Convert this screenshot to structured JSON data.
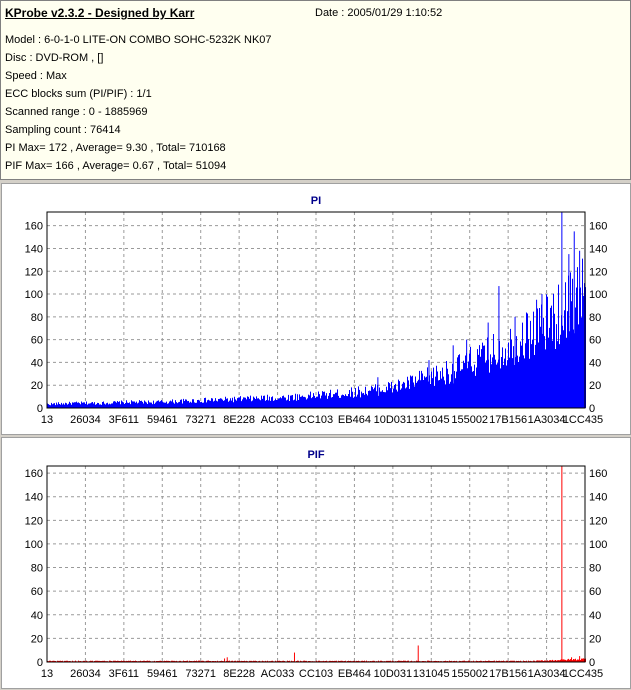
{
  "header": {
    "title": "KProbe v2.3.2 - Designed by Karr",
    "date": "Date : 2005/01/29 1:10:52",
    "lines": [
      "Model : 6-0-1-0 LITE-ON COMBO SOHC-5232K NK07",
      "Disc : DVD-ROM ,  []",
      "Speed : Max",
      "ECC blocks sum (PI/PIF) : 1/1",
      "Scanned range : 0 - 1885969",
      "Sampling count : 76414",
      "PI Max= 172 , Average= 9.30 , Total= 710168",
      "PIF Max= 166 , Average= 0.67 , Total= 51094"
    ]
  },
  "chart_data": [
    {
      "type": "bar",
      "title": "PI",
      "color": "#0000ff",
      "ylim": [
        0,
        172
      ],
      "yticks": [
        0,
        20,
        40,
        60,
        80,
        100,
        120,
        140,
        160
      ],
      "xticks": [
        "13",
        "26034",
        "3F611",
        "59461",
        "73271",
        "8E228",
        "AC033",
        "CC103",
        "EB464",
        "10D031",
        "131045",
        "155002",
        "17B156",
        "1A3034",
        "1CC435"
      ],
      "envelope": [
        [
          0,
          4
        ],
        [
          0.05,
          5
        ],
        [
          0.1,
          5
        ],
        [
          0.15,
          6
        ],
        [
          0.2,
          6
        ],
        [
          0.25,
          7
        ],
        [
          0.3,
          8
        ],
        [
          0.35,
          9
        ],
        [
          0.4,
          10
        ],
        [
          0.45,
          11
        ],
        [
          0.5,
          13
        ],
        [
          0.55,
          15
        ],
        [
          0.6,
          18
        ],
        [
          0.65,
          22
        ],
        [
          0.7,
          30
        ],
        [
          0.75,
          38
        ],
        [
          0.8,
          50
        ],
        [
          0.85,
          62
        ],
        [
          0.9,
          78
        ],
        [
          0.95,
          95
        ],
        [
          1.0,
          125
        ]
      ],
      "spikes": [
        [
          0.615,
          27
        ],
        [
          0.71,
          42
        ],
        [
          0.755,
          55
        ],
        [
          0.78,
          60
        ],
        [
          0.82,
          75
        ],
        [
          0.84,
          107
        ],
        [
          0.87,
          80
        ],
        [
          0.91,
          95
        ],
        [
          0.92,
          100
        ],
        [
          0.957,
          172
        ],
        [
          0.97,
          135
        ],
        [
          0.98,
          155
        ],
        [
          0.99,
          138
        ],
        [
          1.0,
          140
        ]
      ]
    },
    {
      "type": "bar",
      "title": "PIF",
      "color": "#ff0000",
      "ylim": [
        0,
        166
      ],
      "yticks": [
        0,
        20,
        40,
        60,
        80,
        100,
        120,
        140,
        160
      ],
      "xticks": [
        "13",
        "26034",
        "3F611",
        "59461",
        "73271",
        "8E228",
        "AC033",
        "CC103",
        "EB464",
        "10D031",
        "131045",
        "155002",
        "17B156",
        "1A3034",
        "1CC435"
      ],
      "envelope": [
        [
          0,
          1
        ],
        [
          0.3,
          1
        ],
        [
          0.6,
          1
        ],
        [
          0.9,
          1
        ],
        [
          0.95,
          2
        ],
        [
          1.0,
          3
        ]
      ],
      "spikes": [
        [
          0.33,
          3
        ],
        [
          0.335,
          4
        ],
        [
          0.46,
          8
        ],
        [
          0.69,
          14
        ],
        [
          0.957,
          166
        ],
        [
          0.975,
          4
        ],
        [
          0.99,
          5
        ],
        [
          1.0,
          6
        ]
      ]
    }
  ]
}
